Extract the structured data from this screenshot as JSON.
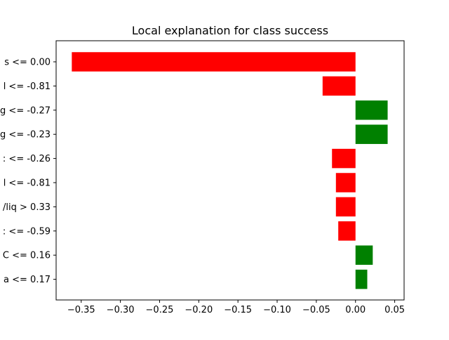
{
  "chart_data": {
    "type": "bar",
    "orientation": "horizontal",
    "title": "Local explanation for class success",
    "xlabel": "",
    "ylabel": "",
    "xlim": [
      -0.382,
      0.062
    ],
    "xticks": [
      -0.35,
      -0.3,
      -0.25,
      -0.2,
      -0.15,
      -0.1,
      -0.05,
      0.0,
      0.05
    ],
    "xtick_labels": [
      "−0.35",
      "−0.30",
      "−0.25",
      "−0.20",
      "−0.15",
      "−0.10",
      "−0.05",
      "0.00",
      "0.05"
    ],
    "categories": [
      "s <= 0.00",
      "l <= -0.81",
      "g <= -0.27",
      "g <= -0.23",
      ": <= -0.26",
      "l <= -0.81",
      "/liq > 0.33",
      ": <= -0.59",
      "C <= 0.16",
      "a <= 0.17"
    ],
    "values": [
      -0.362,
      -0.042,
      0.041,
      0.041,
      -0.03,
      -0.025,
      -0.025,
      -0.022,
      0.022,
      0.015
    ],
    "positive_color": "#008000",
    "negative_color": "#ff0000",
    "grid": false,
    "legend": "none"
  }
}
